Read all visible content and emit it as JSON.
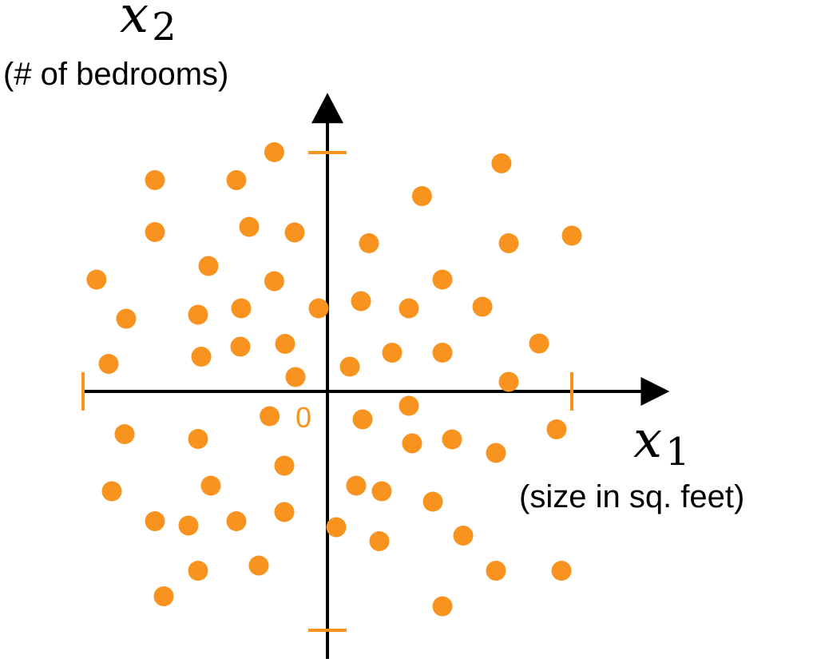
{
  "colors": {
    "point": "#F7931E",
    "axis": "#000000",
    "tick": "#F7931E"
  },
  "chart_data": {
    "type": "scatter",
    "x_axis": {
      "symbol": "x",
      "subscript": "1",
      "description": "(size in sq. feet)",
      "range": [
        -1.0,
        1.4
      ]
    },
    "y_axis": {
      "symbol": "x",
      "subscript": "2",
      "description": "(# of bedrooms)",
      "range": [
        -1.12,
        1.25
      ]
    },
    "origin_label": "0",
    "x_ticks": [
      -1,
      1
    ],
    "y_ticks": [
      -1,
      1
    ],
    "grid": false,
    "points": [
      {
        "x": -0.2176,
        "y": 1.0017
      },
      {
        "x": 0.7122,
        "y": 0.9548
      },
      {
        "x": -0.7059,
        "y": 0.8846
      },
      {
        "x": -0.3725,
        "y": 0.8846
      },
      {
        "x": 0.3869,
        "y": 0.8177
      },
      {
        "x": -0.7059,
        "y": 0.6672
      },
      {
        "x": -0.3203,
        "y": 0.689
      },
      {
        "x": -0.134,
        "y": 0.6656
      },
      {
        "x": 0.1699,
        "y": 0.6204
      },
      {
        "x": 0.7418,
        "y": 0.6204
      },
      {
        "x": 1.0,
        "y": 0.6522
      },
      {
        "x": -0.4869,
        "y": 0.5251
      },
      {
        "x": -0.9449,
        "y": 0.4682
      },
      {
        "x": -0.2176,
        "y": 0.4615
      },
      {
        "x": 0.4705,
        "y": 0.4682
      },
      {
        "x": -0.3529,
        "y": 0.3478
      },
      {
        "x": -0.5294,
        "y": 0.3211
      },
      {
        "x": -0.8235,
        "y": 0.3043
      },
      {
        "x": -0.0359,
        "y": 0.3478
      },
      {
        "x": 0.1372,
        "y": 0.3779
      },
      {
        "x": 0.3333,
        "y": 0.3478
      },
      {
        "x": 0.6339,
        "y": 0.3545
      },
      {
        "x": -0.3562,
        "y": 0.1873
      },
      {
        "x": -0.5163,
        "y": 0.1455
      },
      {
        "x": -0.1732,
        "y": 0.199
      },
      {
        "x": 0.2647,
        "y": 0.1622
      },
      {
        "x": 0.4705,
        "y": 0.1622
      },
      {
        "x": 0.866,
        "y": 0.2007
      },
      {
        "x": -0.8954,
        "y": 0.1154
      },
      {
        "x": 0.0915,
        "y": 0.1037
      },
      {
        "x": -0.1307,
        "y": 0.0602
      },
      {
        "x": 0.7418,
        "y": 0.0401
      },
      {
        "x": 0.3333,
        "y": -0.0602
      },
      {
        "x": -0.2365,
        "y": -0.1037
      },
      {
        "x": 0.1438,
        "y": -0.1171
      },
      {
        "x": 0.9379,
        "y": -0.1589
      },
      {
        "x": -0.8301,
        "y": -0.1789
      },
      {
        "x": -0.5294,
        "y": -0.199
      },
      {
        "x": 0.5098,
        "y": -0.2007
      },
      {
        "x": 0.3464,
        "y": -0.2174
      },
      {
        "x": 0.6895,
        "y": -0.2575
      },
      {
        "x": -0.1764,
        "y": -0.311
      },
      {
        "x": -0.4771,
        "y": -0.3946
      },
      {
        "x": 0.1176,
        "y": -0.3946
      },
      {
        "x": 0.2222,
        "y": -0.4181
      },
      {
        "x": -0.8823,
        "y": -0.4181
      },
      {
        "x": 0.4313,
        "y": -0.4615
      },
      {
        "x": -0.1764,
        "y": -0.505
      },
      {
        "x": -0.7059,
        "y": -0.5435
      },
      {
        "x": -0.5686,
        "y": -0.5619
      },
      {
        "x": -0.3725,
        "y": -0.5435
      },
      {
        "x": 0.036,
        "y": -0.5686
      },
      {
        "x": 0.2124,
        "y": -0.6271
      },
      {
        "x": 0.5555,
        "y": -0.6036
      },
      {
        "x": -0.5294,
        "y": -0.7508
      },
      {
        "x": -0.281,
        "y": -0.7291
      },
      {
        "x": 0.6895,
        "y": -0.7508
      },
      {
        "x": 0.9575,
        "y": -0.7508
      },
      {
        "x": -0.6699,
        "y": -0.8579
      },
      {
        "x": 0.4705,
        "y": -0.8997
      }
    ]
  }
}
